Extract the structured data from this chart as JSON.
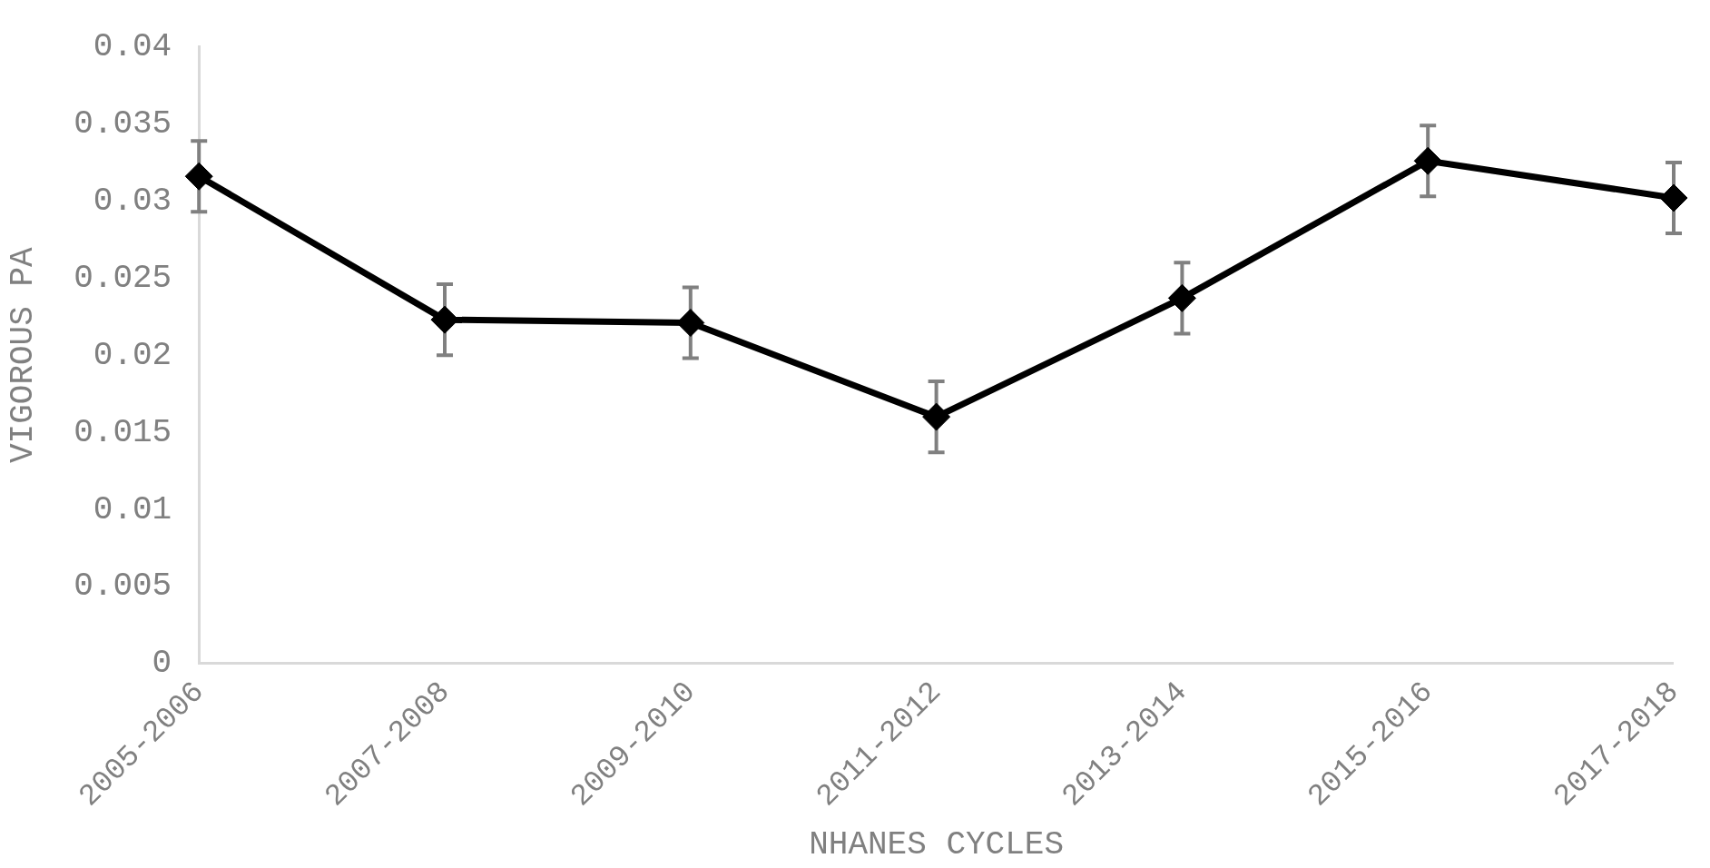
{
  "chart_data": {
    "type": "line",
    "xlabel": "NHANES CYCLES",
    "ylabel": "VIGOROUS PA",
    "categories": [
      "2005-2006",
      "2007-2008",
      "2009-2010",
      "2011-2012",
      "2013-2014",
      "2015-2016",
      "2017-2018"
    ],
    "values": [
      0.0316,
      0.0223,
      0.0221,
      0.016,
      0.0237,
      0.0326,
      0.0302
    ],
    "errors": [
      0.0023,
      0.0023,
      0.0023,
      0.0023,
      0.0023,
      0.0023,
      0.0023
    ],
    "color": "#000000",
    "marker": "diamond",
    "line_style": "solid",
    "grid": false,
    "legend": false,
    "ylim": [
      0,
      0.04
    ],
    "yticks": [
      0,
      0.005,
      0.01,
      0.015,
      0.02,
      0.025,
      0.03,
      0.035,
      0.04
    ]
  }
}
